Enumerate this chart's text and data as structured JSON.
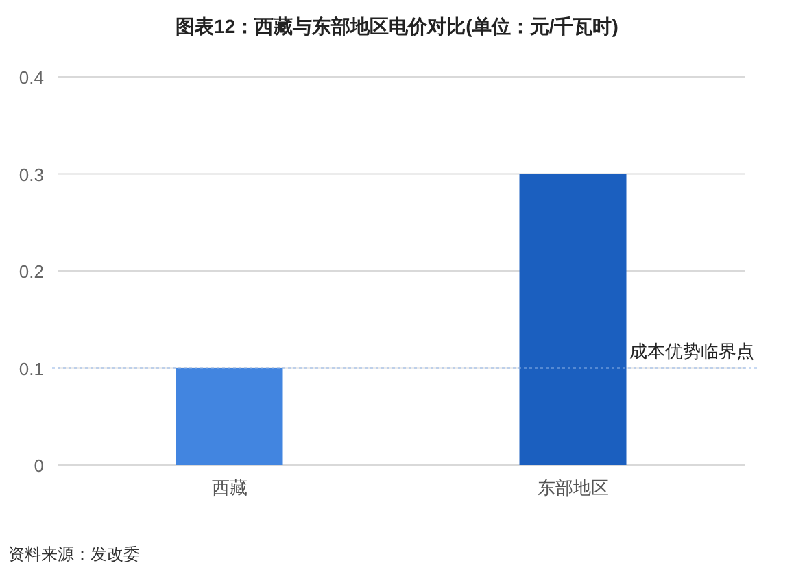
{
  "chart_data": {
    "type": "bar",
    "title": "图表12：西藏与东部地区电价对比(单位：元/千瓦时)",
    "categories": [
      "西藏",
      "东部地区"
    ],
    "values": [
      0.1,
      0.3
    ],
    "colors": [
      "#4285e0",
      "#1b5fbf"
    ],
    "ylim": [
      0,
      0.4
    ],
    "yticks": [
      0,
      0.1,
      0.2,
      0.3,
      0.4
    ],
    "grid": "y",
    "ref_lines": [
      {
        "axis": "y",
        "value": 0.1,
        "label": "成本优势临界点",
        "color": "#8fb4e8",
        "line_style": "dotted"
      }
    ],
    "annotations": [
      "资料来源：发改委"
    ]
  }
}
